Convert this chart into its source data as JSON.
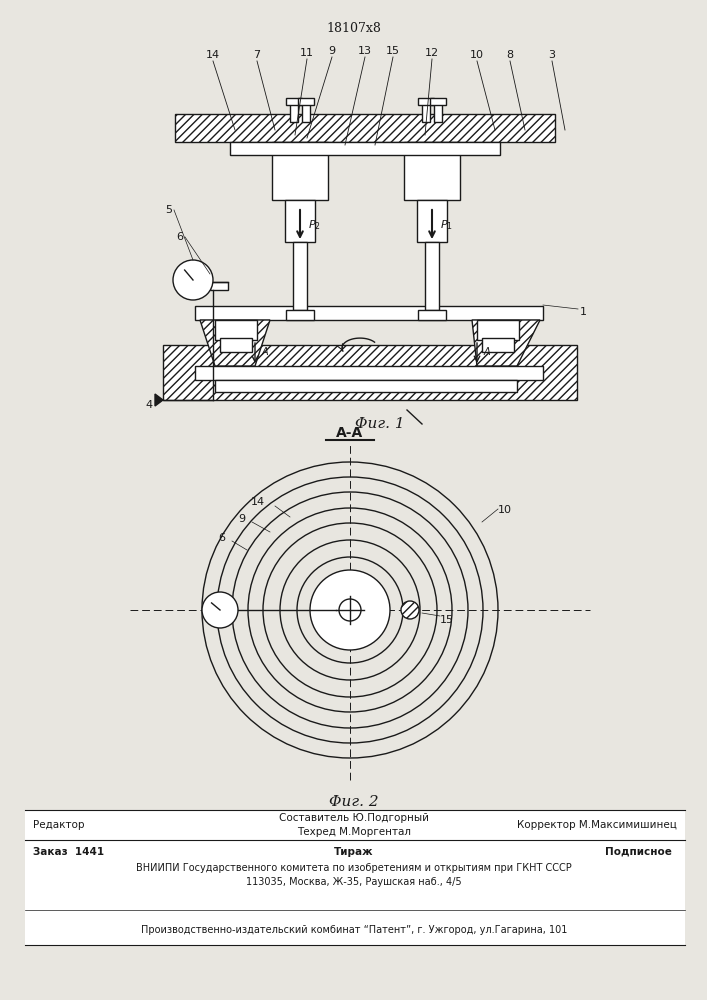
{
  "patent_number": "18107х8",
  "fig1_caption": "Φиг. 1",
  "fig2_caption": "Φиг. 2",
  "aa_label": "A-A",
  "footer_line1_col1": "Редактор",
  "footer_line1_col2a": "Составитель Ю.Подгорный",
  "footer_line1_col2b": "Техред М.Моргентал",
  "footer_line1_col3": "Корректор М.Максимишинец",
  "footer_line2_col1": "Заказ  1441",
  "footer_line2_col2": "Тираж",
  "footer_line2_col3": "Подписное",
  "footer_line3": "ВНИИПИ Государственного комитета по изобретениям и открытиям при ГКНТ СССР",
  "footer_line4": "113035, Москва, Ж-35, Раушская наб., 4/5",
  "footer_line5": "Производственно-издательский комбинат “Патент”, г. Ужгород, ул.Гагарина, 101",
  "bg_color": "#e8e6e0",
  "line_color": "#1a1a1a"
}
